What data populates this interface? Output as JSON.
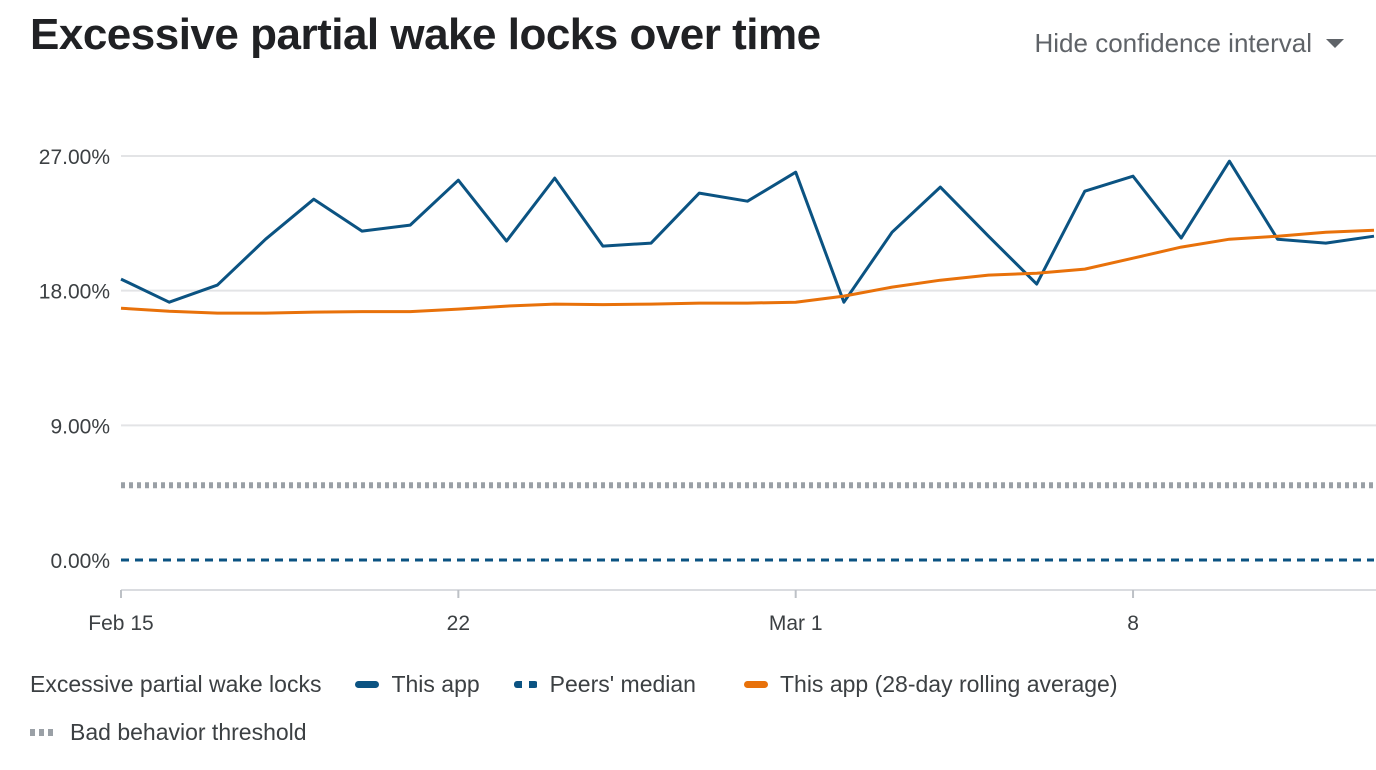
{
  "header": {
    "title": "Excessive partial wake locks over time",
    "ci_toggle_label": "Hide confidence interval",
    "ci_icon": "caret-down-icon"
  },
  "chart_data": {
    "type": "line",
    "title": "Excessive partial wake locks over time",
    "x_start": "Feb 15",
    "x_ticks": [
      {
        "label": "Feb 15",
        "day": 0
      },
      {
        "label": "22",
        "day": 7
      },
      {
        "label": "Mar 1",
        "day": 14
      },
      {
        "label": "8",
        "day": 21
      }
    ],
    "x_range_days": [
      0,
      26
    ],
    "y_ticks": [
      "0.00%",
      "9.00%",
      "18.00%",
      "27.00%"
    ],
    "ylim": [
      0,
      27
    ],
    "grid": true,
    "legend_title": "Excessive partial wake locks",
    "legend_position": "bottom",
    "series": [
      {
        "name": "This app",
        "color": "#0b5382",
        "style": "solid",
        "values": [
          18.77,
          17.23,
          18.37,
          21.44,
          24.11,
          21.98,
          22.38,
          25.38,
          21.31,
          25.52,
          20.98,
          21.18,
          24.52,
          23.98,
          25.92,
          17.23,
          21.91,
          24.92,
          21.64,
          18.44,
          24.65,
          25.65,
          21.51,
          26.65,
          21.44,
          21.18,
          21.64
        ]
      },
      {
        "name": "Peers' median",
        "color": "#0b5382",
        "style": "dashed",
        "values": [
          0,
          0,
          0,
          0,
          0,
          0,
          0,
          0,
          0,
          0,
          0,
          0,
          0,
          0,
          0,
          0,
          0,
          0,
          0,
          0,
          0,
          0,
          0,
          0,
          0,
          0,
          0
        ]
      },
      {
        "name": "This app (28-day rolling average)",
        "color": "#e8710a",
        "style": "solid",
        "values": [
          16.83,
          16.63,
          16.5,
          16.5,
          16.57,
          16.6,
          16.6,
          16.77,
          16.97,
          17.1,
          17.07,
          17.1,
          17.17,
          17.17,
          17.23,
          17.64,
          18.24,
          18.7,
          19.04,
          19.17,
          19.44,
          20.17,
          20.91,
          21.44,
          21.64,
          21.91,
          22.04
        ]
      },
      {
        "name": "Bad behavior threshold",
        "color": "#9aa0a6",
        "style": "dotted",
        "values": [
          5,
          5,
          5,
          5,
          5,
          5,
          5,
          5,
          5,
          5,
          5,
          5,
          5,
          5,
          5,
          5,
          5,
          5,
          5,
          5,
          5,
          5,
          5,
          5,
          5,
          5,
          5
        ]
      }
    ]
  }
}
